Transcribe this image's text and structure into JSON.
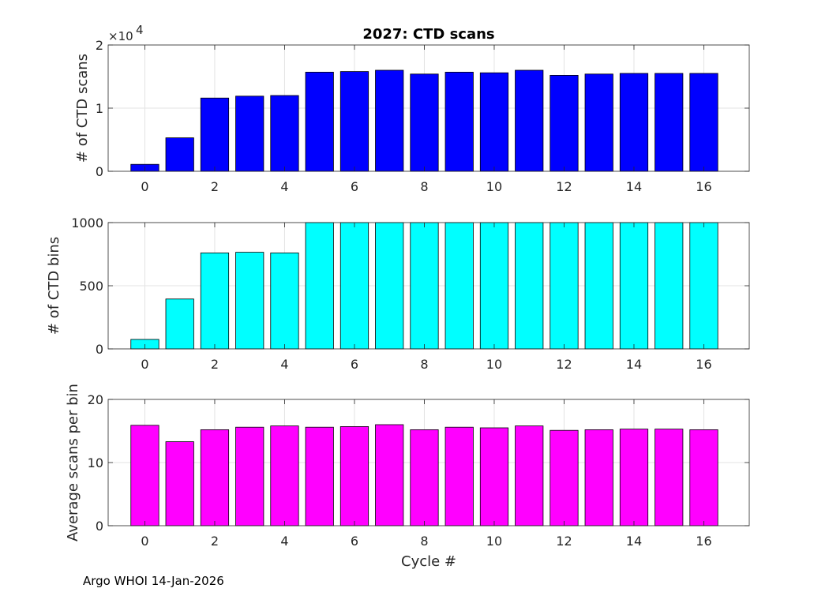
{
  "chart_data": [
    {
      "type": "bar",
      "title": "2027: CTD scans",
      "ylabel": "# of CTD scans",
      "xlabel": "",
      "x": [
        0,
        1,
        2,
        3,
        4,
        5,
        6,
        7,
        8,
        9,
        10,
        11,
        12,
        13,
        14,
        15,
        16
      ],
      "values": [
        1100,
        5300,
        11600,
        11900,
        12000,
        15700,
        15800,
        16000,
        15400,
        15700,
        15600,
        16000,
        15200,
        15400,
        15500,
        15500,
        15500
      ],
      "ylim": [
        0,
        20000
      ],
      "yticks": [
        0,
        10000,
        20000
      ],
      "ytick_labels": [
        "0",
        "1",
        "2"
      ],
      "y_multiplier_base": "×10",
      "y_multiplier_exp": "4",
      "xticks": [
        0,
        2,
        4,
        6,
        8,
        10,
        12,
        14,
        16
      ],
      "color": "#0000ff",
      "grid": true
    },
    {
      "type": "bar",
      "title": "",
      "ylabel": "# of CTD bins",
      "xlabel": "",
      "x": [
        0,
        1,
        2,
        3,
        4,
        5,
        6,
        7,
        8,
        9,
        10,
        11,
        12,
        13,
        14,
        15,
        16
      ],
      "values": [
        75,
        395,
        760,
        765,
        760,
        1000,
        1000,
        1000,
        1000,
        1000,
        1000,
        1000,
        1000,
        1000,
        1000,
        1000,
        1000
      ],
      "ylim": [
        0,
        1000
      ],
      "yticks": [
        0,
        500,
        1000
      ],
      "ytick_labels": [
        "0",
        "500",
        "1000"
      ],
      "xticks": [
        0,
        2,
        4,
        6,
        8,
        10,
        12,
        14,
        16
      ],
      "color": "#00ffff",
      "grid": true
    },
    {
      "type": "bar",
      "title": "",
      "ylabel": "Average scans per bin",
      "xlabel": "Cycle #",
      "x": [
        0,
        1,
        2,
        3,
        4,
        5,
        6,
        7,
        8,
        9,
        10,
        11,
        12,
        13,
        14,
        15,
        16
      ],
      "values": [
        15.9,
        13.3,
        15.2,
        15.6,
        15.8,
        15.6,
        15.7,
        16.0,
        15.2,
        15.6,
        15.5,
        15.8,
        15.1,
        15.2,
        15.3,
        15.3,
        15.2
      ],
      "ylim": [
        0,
        20
      ],
      "yticks": [
        0,
        10,
        20
      ],
      "ytick_labels": [
        "0",
        "10",
        "20"
      ],
      "xticks": [
        0,
        2,
        4,
        6,
        8,
        10,
        12,
        14,
        16
      ],
      "color": "#ff00ff",
      "grid": true
    }
  ],
  "footer": {
    "text": "Argo WHOI 14-Jan-2026"
  }
}
